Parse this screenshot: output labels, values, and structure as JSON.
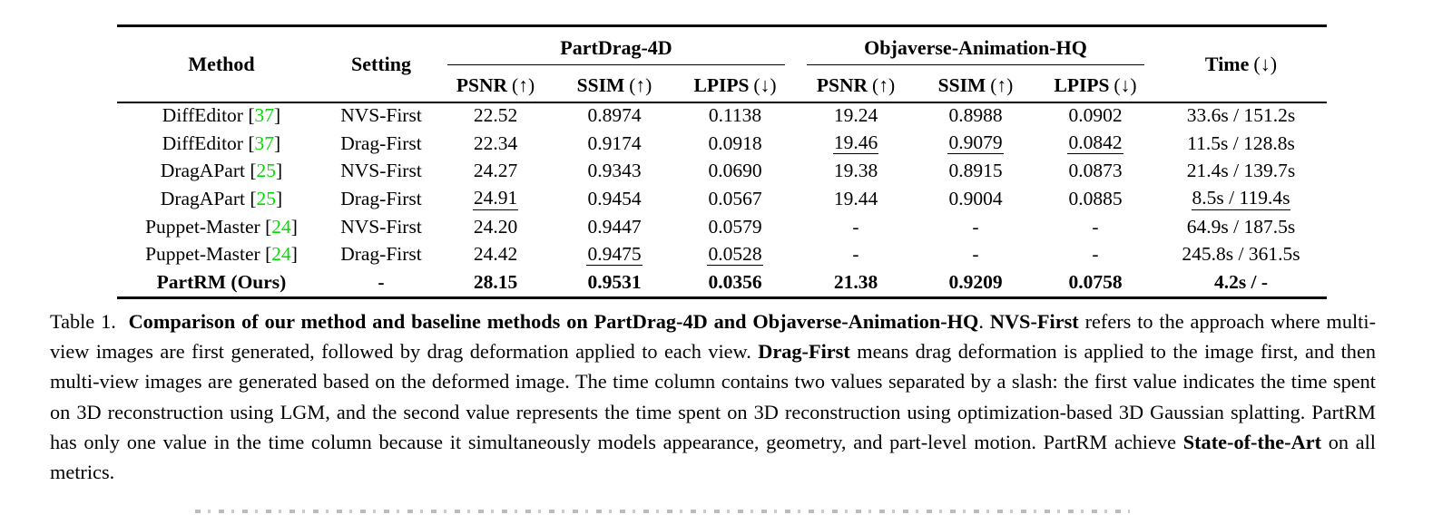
{
  "colors": {
    "citation_green": "#00DC00",
    "text": "#000000",
    "rule": "#000000"
  },
  "table": {
    "header": {
      "method": "Method",
      "setting": "Setting",
      "groups": [
        {
          "label": "PartDrag-4D"
        },
        {
          "label": "Objaverse-Animation-HQ"
        }
      ],
      "metrics": [
        {
          "name": "PSNR",
          "arrow": "(↑)"
        },
        {
          "name": "SSIM",
          "arrow": "(↑)"
        },
        {
          "name": "LPIPS",
          "arrow": "(↓)"
        }
      ],
      "time": {
        "name": "Time",
        "arrow": "(↓)"
      }
    },
    "rows": [
      {
        "method": "DiffEditor",
        "cite": "37",
        "setting": "NVS-First",
        "bold": false,
        "cells": [
          {
            "t": "22.52"
          },
          {
            "t": "0.8974"
          },
          {
            "t": "0.1138"
          },
          {
            "t": "19.24"
          },
          {
            "t": "0.8988"
          },
          {
            "t": "0.0902"
          },
          {
            "t": "33.6s / 151.2s"
          }
        ]
      },
      {
        "method": "DiffEditor",
        "cite": "37",
        "setting": "Drag-First",
        "bold": false,
        "cells": [
          {
            "t": "22.34"
          },
          {
            "t": "0.9174"
          },
          {
            "t": "0.0918"
          },
          {
            "t": "19.46",
            "u": true
          },
          {
            "t": "0.9079",
            "u": true
          },
          {
            "t": "0.0842",
            "u": true
          },
          {
            "t": "11.5s / 128.8s"
          }
        ]
      },
      {
        "method": "DragAPart",
        "cite": "25",
        "setting": "NVS-First",
        "bold": false,
        "cells": [
          {
            "t": "24.27"
          },
          {
            "t": "0.9343"
          },
          {
            "t": "0.0690"
          },
          {
            "t": "19.38"
          },
          {
            "t": "0.8915"
          },
          {
            "t": "0.0873"
          },
          {
            "t": "21.4s / 139.7s"
          }
        ]
      },
      {
        "method": "DragAPart",
        "cite": "25",
        "setting": "Drag-First",
        "bold": false,
        "cells": [
          {
            "t": "24.91",
            "u": true
          },
          {
            "t": "0.9454"
          },
          {
            "t": "0.0567"
          },
          {
            "t": "19.44"
          },
          {
            "t": "0.9004"
          },
          {
            "t": "0.0885"
          },
          {
            "t": "8.5s / 119.4s",
            "u": true
          }
        ]
      },
      {
        "method": "Puppet-Master",
        "cite": "24",
        "setting": "NVS-First",
        "bold": false,
        "cells": [
          {
            "t": "24.20"
          },
          {
            "t": "0.9447"
          },
          {
            "t": "0.0579"
          },
          {
            "t": "-"
          },
          {
            "t": "-"
          },
          {
            "t": "-"
          },
          {
            "t": "64.9s / 187.5s"
          }
        ]
      },
      {
        "method": "Puppet-Master",
        "cite": "24",
        "setting": "Drag-First",
        "bold": false,
        "cells": [
          {
            "t": "24.42"
          },
          {
            "t": "0.9475",
            "u": true
          },
          {
            "t": "0.0528",
            "u": true
          },
          {
            "t": "-"
          },
          {
            "t": "-"
          },
          {
            "t": "-"
          },
          {
            "t": "245.8s / 361.5s"
          }
        ]
      },
      {
        "method": "PartRM (Ours)",
        "cite": null,
        "setting": "-",
        "bold": true,
        "cells": [
          {
            "t": "28.15"
          },
          {
            "t": "0.9531"
          },
          {
            "t": "0.0356"
          },
          {
            "t": "21.38"
          },
          {
            "t": "0.9209"
          },
          {
            "t": "0.0758"
          },
          {
            "t": "4.2s / -"
          }
        ]
      }
    ]
  },
  "caption": {
    "segments": [
      {
        "t": "Table 1.  ",
        "b": false
      },
      {
        "t": "Comparison of our method and baseline methods on PartDrag-4D and Objaverse-Animation-HQ",
        "b": true
      },
      {
        "t": ". ",
        "b": false
      },
      {
        "t": "NVS-First",
        "b": true
      },
      {
        "t": " refers to the approach where multi-view images are first generated, followed by drag deformation applied to each view. ",
        "b": false
      },
      {
        "t": "Drag-First",
        "b": true
      },
      {
        "t": " means drag deformation is applied to the image first, and then multi-view images are generated based on the deformed image. The time column contains two values separated by a slash: the first value indicates the time spent on 3D reconstruction using LGM, and the second value represents the time spent on 3D reconstruction using optimization-based 3D Gaussian splatting. PartRM has only one value in the time column because it simultaneously models appearance, geometry, and part-level motion. PartRM achieve ",
        "b": false
      },
      {
        "t": "State-of-the-Art",
        "b": true
      },
      {
        "t": " on all metrics.",
        "b": false
      }
    ]
  }
}
